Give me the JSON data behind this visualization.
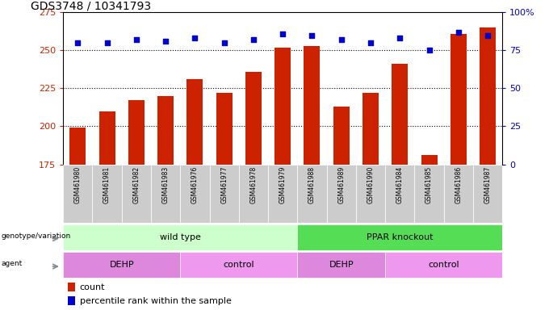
{
  "title": "GDS3748 / 10341793",
  "samples": [
    "GSM461980",
    "GSM461981",
    "GSM461982",
    "GSM461983",
    "GSM461976",
    "GSM461977",
    "GSM461978",
    "GSM461979",
    "GSM461988",
    "GSM461989",
    "GSM461990",
    "GSM461984",
    "GSM461985",
    "GSM461986",
    "GSM461987"
  ],
  "counts": [
    199,
    210,
    217,
    220,
    231,
    222,
    236,
    252,
    253,
    213,
    222,
    241,
    181,
    261,
    265
  ],
  "percentile_ranks": [
    80,
    80,
    82,
    81,
    83,
    80,
    82,
    86,
    85,
    82,
    80,
    83,
    75,
    87,
    85
  ],
  "ylim_left": [
    175,
    275
  ],
  "ylim_right": [
    0,
    100
  ],
  "yticks_left": [
    175,
    200,
    225,
    250,
    275
  ],
  "yticks_right": [
    0,
    25,
    50,
    75,
    100
  ],
  "bar_color": "#cc2200",
  "dot_color": "#0000cc",
  "genotype_groups": [
    {
      "label": "wild type",
      "start": 0,
      "end": 8,
      "color": "#ccffcc"
    },
    {
      "label": "PPAR knockout",
      "start": 8,
      "end": 15,
      "color": "#55dd55"
    }
  ],
  "agent_groups": [
    {
      "label": "DEHP",
      "start": 0,
      "end": 4,
      "color": "#dd88dd"
    },
    {
      "label": "control",
      "start": 4,
      "end": 8,
      "color": "#ee99ee"
    },
    {
      "label": "DEHP",
      "start": 8,
      "end": 11,
      "color": "#dd88dd"
    },
    {
      "label": "control",
      "start": 11,
      "end": 15,
      "color": "#ee99ee"
    }
  ],
  "legend_items": [
    {
      "label": "count",
      "color": "#cc2200"
    },
    {
      "label": "percentile rank within the sample",
      "color": "#0000cc"
    }
  ]
}
